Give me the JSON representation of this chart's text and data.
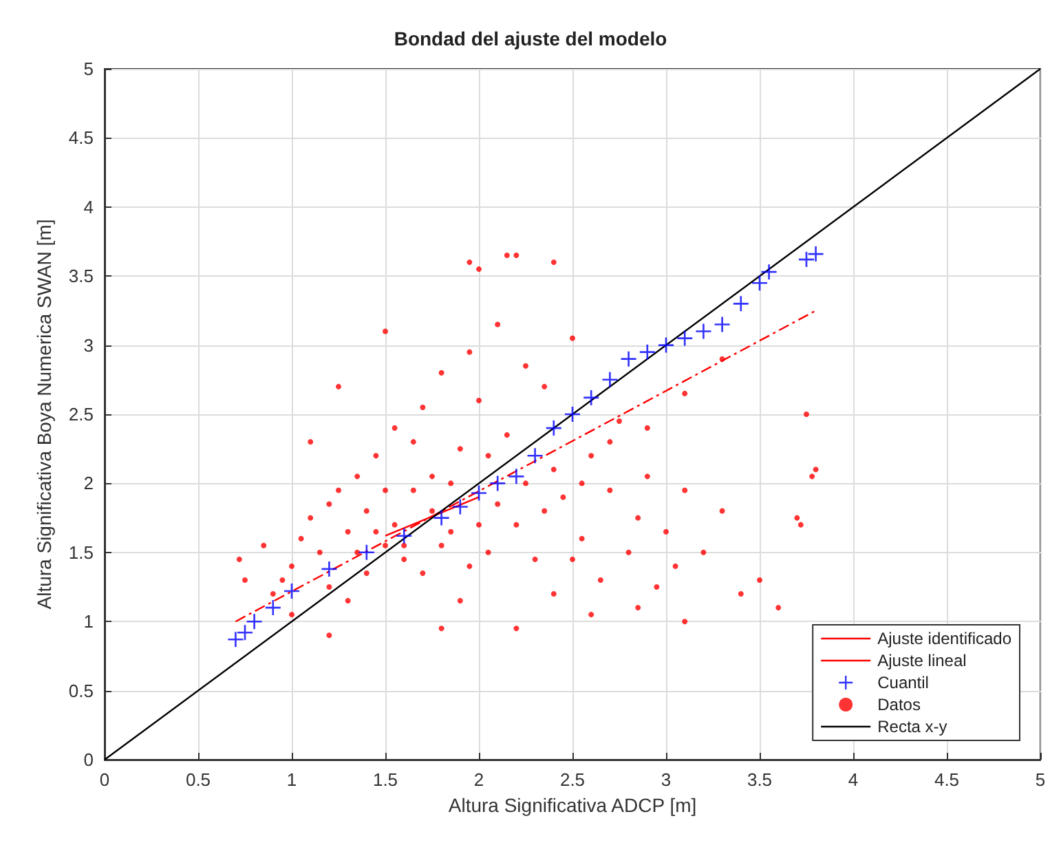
{
  "chart_data": {
    "type": "scatter",
    "title": "Bondad del ajuste del modelo",
    "xlabel": "Altura Significativa ADCP [m]",
    "ylabel": "Altura Significativa Boya Numerica SWAN [m]",
    "xlim": [
      0,
      5
    ],
    "ylim": [
      0,
      5
    ],
    "xticks": [
      0,
      0.5,
      1,
      1.5,
      2,
      2.5,
      3,
      3.5,
      4,
      4.5,
      5
    ],
    "yticks": [
      0,
      0.5,
      1,
      1.5,
      2,
      2.5,
      3,
      3.5,
      4,
      4.5,
      5
    ],
    "grid": true,
    "legend": "bottom right",
    "series": [
      {
        "name": "Ajuste identificado",
        "type": "line",
        "line_style": "dashed",
        "marker": "none",
        "color": "#ff0000",
        "x": [
          0.7,
          3.8
        ],
        "values": [
          1.0,
          3.25
        ]
      },
      {
        "name": "Ajuste lineal",
        "type": "line",
        "line_style": "solid",
        "marker": "none",
        "color": "#ff0000",
        "x": [
          1.5,
          2.0
        ],
        "values": [
          1.62,
          1.9
        ]
      },
      {
        "name": "Cuantil",
        "marker": "cross",
        "color": "#0000ff",
        "x": [
          0.7,
          0.75,
          0.8,
          0.9,
          1.0,
          1.2,
          1.4,
          1.6,
          1.8,
          1.9,
          2.0,
          2.1,
          2.2,
          2.3,
          2.4,
          2.5,
          2.6,
          2.7,
          2.8,
          2.9,
          3.0,
          3.1,
          3.2,
          3.3,
          3.4,
          3.5,
          3.55,
          3.75,
          3.8
        ],
        "values": [
          0.87,
          0.92,
          1.0,
          1.1,
          1.22,
          1.38,
          1.5,
          1.62,
          1.75,
          1.83,
          1.93,
          2.0,
          2.05,
          2.2,
          2.4,
          2.5,
          2.62,
          2.75,
          2.9,
          2.95,
          3.0,
          3.05,
          3.1,
          3.15,
          3.3,
          3.45,
          3.53,
          3.62,
          3.66
        ]
      },
      {
        "name": "Datos",
        "marker": "circle",
        "color": "#ff0000",
        "x": [
          1.95,
          2.15,
          2.2,
          2.4,
          2.0,
          1.5,
          1.25,
          1.1,
          0.72,
          0.75,
          0.85,
          0.9,
          1.0,
          1.05,
          1.1,
          1.15,
          1.2,
          1.25,
          1.3,
          1.35,
          1.4,
          1.45,
          1.5,
          1.55,
          1.6,
          1.65,
          1.7,
          1.75,
          1.8,
          1.85,
          1.9,
          1.95,
          2.0,
          2.05,
          2.1,
          2.15,
          2.2,
          2.25,
          2.3,
          2.35,
          2.4,
          2.45,
          2.5,
          2.55,
          2.6,
          2.65,
          2.7,
          2.75,
          2.8,
          2.85,
          2.9,
          2.95,
          3.0,
          3.05,
          3.1,
          3.2,
          3.3,
          3.4,
          3.5,
          3.6,
          3.7,
          3.75,
          3.78,
          3.8,
          3.72,
          3.1,
          2.55,
          1.6,
          1.4,
          1.2,
          1.0,
          0.95,
          1.3,
          1.7,
          1.9,
          2.0,
          1.8,
          2.1,
          1.5,
          1.55,
          1.75,
          1.45,
          2.25,
          2.35,
          2.5,
          2.6,
          2.2,
          1.2,
          1.8,
          3.3,
          3.1,
          2.7,
          2.9,
          2.85,
          1.65,
          1.35,
          1.85,
          2.05,
          1.95,
          2.4
        ],
        "values": [
          3.6,
          3.65,
          3.65,
          3.6,
          3.55,
          3.1,
          2.7,
          2.3,
          1.45,
          1.3,
          1.55,
          1.2,
          1.4,
          1.6,
          1.75,
          1.5,
          1.85,
          1.95,
          1.65,
          2.05,
          1.8,
          2.2,
          1.95,
          2.4,
          1.55,
          2.3,
          2.55,
          2.05,
          2.8,
          1.65,
          2.25,
          2.95,
          2.6,
          1.5,
          3.15,
          2.35,
          1.7,
          2.85,
          1.45,
          2.7,
          1.2,
          1.9,
          3.05,
          1.6,
          2.2,
          1.3,
          1.95,
          2.45,
          1.5,
          1.75,
          2.05,
          1.25,
          1.65,
          1.4,
          1.0,
          1.5,
          1.8,
          1.2,
          1.3,
          1.1,
          1.75,
          2.5,
          2.05,
          2.1,
          1.7,
          1.95,
          2.0,
          1.45,
          1.35,
          1.25,
          1.05,
          1.3,
          1.15,
          1.35,
          1.15,
          1.7,
          1.55,
          1.85,
          1.55,
          1.7,
          1.8,
          1.65,
          2.0,
          1.8,
          1.45,
          1.05,
          0.95,
          0.9,
          0.95,
          2.9,
          2.65,
          2.3,
          2.4,
          1.1,
          1.95,
          1.5,
          2.0,
          2.2,
          1.4,
          2.1
        ]
      },
      {
        "name": "Recta x-y",
        "type": "line",
        "line_style": "solid",
        "marker": "none",
        "color": "#000000",
        "x": [
          0,
          5
        ],
        "values": [
          0,
          5
        ]
      }
    ]
  }
}
